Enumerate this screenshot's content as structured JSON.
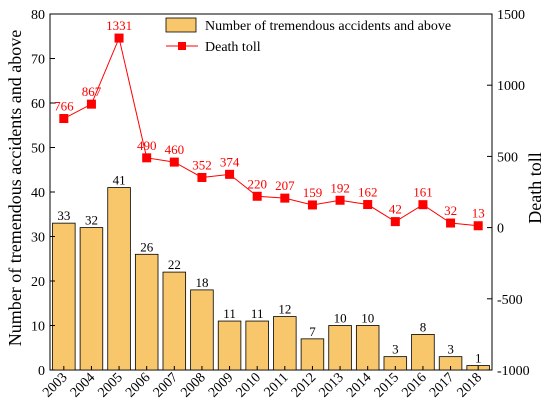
{
  "chart_data": {
    "type": "bar+line",
    "categories": [
      "2003",
      "2004",
      "2005",
      "2006",
      "2007",
      "2008",
      "2009",
      "2010",
      "2011",
      "2012",
      "2013",
      "2014",
      "2015",
      "2016",
      "2017",
      "2018"
    ],
    "series": [
      {
        "name": "Number of tremendous accidents and above",
        "type": "bar",
        "axis": "left",
        "values": [
          33,
          32,
          41,
          26,
          22,
          18,
          11,
          11,
          12,
          7,
          10,
          10,
          3,
          8,
          3,
          1
        ],
        "labels": [
          "33",
          "32",
          "41",
          "26",
          "22",
          "18",
          "11",
          "11",
          "12",
          "7",
          "10",
          "10",
          "3",
          "8",
          "3",
          "1"
        ],
        "color": "#F9C76B"
      },
      {
        "name": "Death toll",
        "type": "line",
        "axis": "right",
        "values": [
          766,
          867,
          1331,
          490,
          460,
          352,
          374,
          220,
          207,
          159,
          192,
          162,
          42,
          161,
          32,
          13
        ],
        "labels": [
          "766",
          "867",
          "1331",
          "490",
          "460",
          "352",
          "374",
          "220",
          "207",
          "159",
          "192",
          "162",
          "42",
          "161",
          "32",
          "13"
        ],
        "color": "#FF0000"
      }
    ],
    "ylabel": "Number of tremendous accidents and above",
    "y2label": "Death toll",
    "ylim": [
      0,
      80
    ],
    "yticks": [
      0,
      10,
      20,
      30,
      40,
      50,
      60,
      70,
      80
    ],
    "y2lim": [
      -1000,
      1500
    ],
    "y2ticks": [
      -1000,
      -500,
      0,
      500,
      1000,
      1500
    ],
    "legend": "top-center",
    "grid": false
  }
}
